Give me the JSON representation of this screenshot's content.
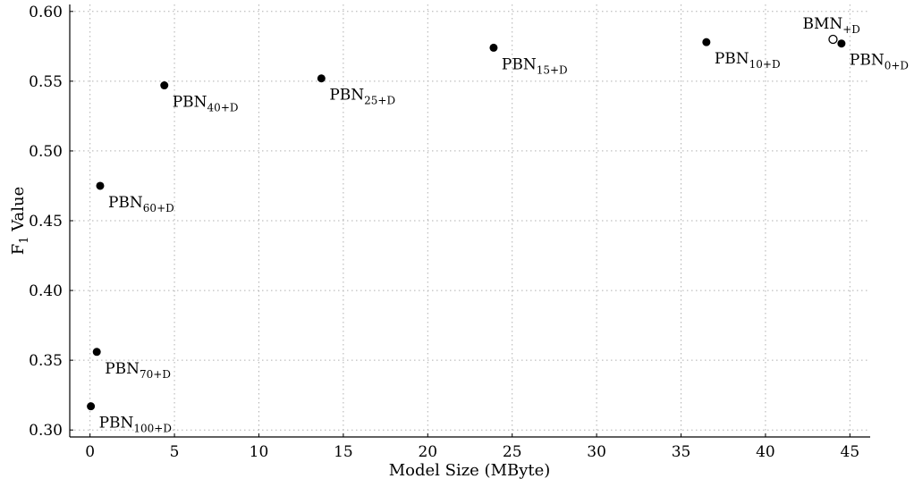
{
  "chart_data": {
    "type": "scatter",
    "xlabel": "Model Size (MByte)",
    "ylabel_main": "F",
    "ylabel_sub": "1",
    "ylabel_rest": " Value",
    "xlim": [
      -1.2,
      46.2
    ],
    "ylim": [
      0.295,
      0.605
    ],
    "xticks": [
      0,
      5,
      10,
      15,
      20,
      25,
      30,
      35,
      40,
      45
    ],
    "yticks": [
      0.3,
      0.35,
      0.4,
      0.45,
      0.5,
      0.55,
      0.6
    ],
    "xtick_labels": [
      "0",
      "5",
      "10",
      "15",
      "20",
      "25",
      "30",
      "35",
      "40",
      "45"
    ],
    "ytick_labels": [
      "0.30",
      "0.35",
      "0.40",
      "0.45",
      "0.50",
      "0.55",
      "0.60"
    ],
    "grid": true,
    "points": [
      {
        "x": 0.05,
        "y": 0.317,
        "filled": true,
        "label": "PBN",
        "sub": "100+D",
        "pos": "below-right"
      },
      {
        "x": 0.4,
        "y": 0.356,
        "filled": true,
        "label": "PBN",
        "sub": "70+D",
        "pos": "below-right"
      },
      {
        "x": 0.6,
        "y": 0.475,
        "filled": true,
        "label": "PBN",
        "sub": "60+D",
        "pos": "below-right"
      },
      {
        "x": 4.4,
        "y": 0.547,
        "filled": true,
        "label": "PBN",
        "sub": "40+D",
        "pos": "below-right"
      },
      {
        "x": 13.7,
        "y": 0.552,
        "filled": true,
        "label": "PBN",
        "sub": "25+D",
        "pos": "below-right"
      },
      {
        "x": 23.9,
        "y": 0.574,
        "filled": true,
        "label": "PBN",
        "sub": "15+D",
        "pos": "below-right"
      },
      {
        "x": 36.5,
        "y": 0.578,
        "filled": true,
        "label": "PBN",
        "sub": "10+D",
        "pos": "below-right"
      },
      {
        "x": 44.5,
        "y": 0.577,
        "filled": true,
        "label": "PBN",
        "sub": "0+D",
        "pos": "below-right"
      },
      {
        "x": 44.0,
        "y": 0.58,
        "filled": false,
        "label": "BMN",
        "sub": "+D",
        "pos": "above-left"
      }
    ]
  }
}
